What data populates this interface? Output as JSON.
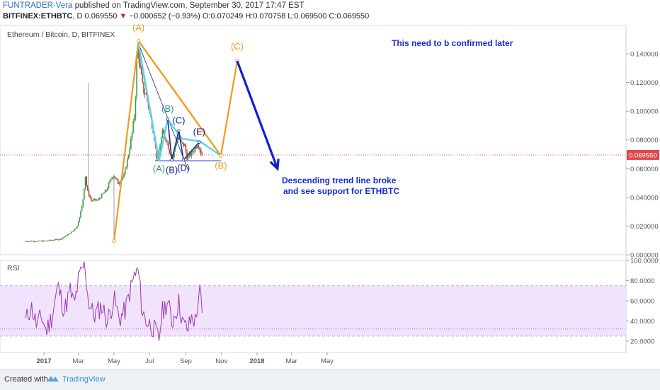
{
  "header": {
    "author": "FUNTRADER-Vera",
    "published": "published on TradingView.com, September 30, 2017 17:47 EST",
    "symbol": "BITFINEX:ETHBTC",
    "interval": "D",
    "last": "0.069550",
    "change": "−0.000652 (−0.93%)",
    "ohlc": "O:0.070249 H:0.070758 L:0.069500 C:0.069550"
  },
  "colors": {
    "orange": "#f29b1d",
    "cyan": "#55d6f0",
    "navy": "#1a2a8c",
    "blue": "#0f1fd6",
    "last_price": "#e0474c",
    "rsi_line": "#9c3ab2",
    "rsi_band": "#f1e3fb",
    "up_candle": "#3c9a4a",
    "down_candle": "#b24432",
    "teal": "#2f9a8a"
  },
  "footer": {
    "created": "Created with",
    "brand": "TradingView"
  },
  "chart_data": [
    {
      "type": "candlestick",
      "title": "Ethereum / Bitcoin, D, BITFINEX",
      "x_ticks": [
        "2017",
        "Mar",
        "May",
        "Jul",
        "Sep",
        "Nov",
        "2018",
        "Mar",
        "May"
      ],
      "y_ticks": [
        "0.140000",
        "0.120000",
        "0.100000",
        "0.080000",
        "0.060000",
        "0.040000",
        "0.020000",
        "0.000000"
      ],
      "ylim": [
        0,
        0.15
      ],
      "last_price_label": "0.069550",
      "price_path": [
        {
          "date": "2016-12-01",
          "close": 0.0095
        },
        {
          "date": "2017-01-01",
          "close": 0.0095
        },
        {
          "date": "2017-02-01",
          "close": 0.011
        },
        {
          "date": "2017-02-22",
          "close": 0.0165
        },
        {
          "date": "2017-03-01",
          "close": 0.02
        },
        {
          "date": "2017-03-10",
          "close": 0.035
        },
        {
          "date": "2017-03-15",
          "close": 0.055
        },
        {
          "date": "2017-03-18",
          "close": 0.045
        },
        {
          "date": "2017-03-25",
          "close": 0.038
        },
        {
          "date": "2017-04-05",
          "close": 0.038
        },
        {
          "date": "2017-04-20",
          "close": 0.045
        },
        {
          "date": "2017-05-01",
          "close": 0.056
        },
        {
          "date": "2017-05-10",
          "close": 0.05
        },
        {
          "date": "2017-05-20",
          "close": 0.055
        },
        {
          "date": "2017-05-28",
          "close": 0.07
        },
        {
          "date": "2017-06-03",
          "close": 0.085
        },
        {
          "date": "2017-06-08",
          "close": 0.1
        },
        {
          "date": "2017-06-12",
          "close": 0.147
        },
        {
          "date": "2017-06-16",
          "close": 0.132
        },
        {
          "date": "2017-06-22",
          "close": 0.115
        },
        {
          "date": "2017-06-28",
          "close": 0.11
        },
        {
          "date": "2017-07-05",
          "close": 0.095
        },
        {
          "date": "2017-07-10",
          "close": 0.085
        },
        {
          "date": "2017-07-16",
          "close": 0.065
        },
        {
          "date": "2017-07-20",
          "close": 0.075
        },
        {
          "date": "2017-07-25",
          "close": 0.085
        },
        {
          "date": "2017-08-01",
          "close": 0.08
        },
        {
          "date": "2017-08-06",
          "close": 0.072
        },
        {
          "date": "2017-08-12",
          "close": 0.068
        },
        {
          "date": "2017-08-15",
          "close": 0.075
        },
        {
          "date": "2017-08-20",
          "close": 0.082
        },
        {
          "date": "2017-08-25",
          "close": 0.078
        },
        {
          "date": "2017-09-01",
          "close": 0.076
        },
        {
          "date": "2017-09-05",
          "close": 0.068
        },
        {
          "date": "2017-09-12",
          "close": 0.07
        },
        {
          "date": "2017-09-18",
          "close": 0.074
        },
        {
          "date": "2017-09-24",
          "close": 0.078
        },
        {
          "date": "2017-09-30",
          "close": 0.0696
        }
      ],
      "spikes": [
        {
          "date": "2017-03-18",
          "high": 0.12
        },
        {
          "date": "2017-05-01",
          "low": 0.01
        }
      ],
      "annotations": {
        "text_confirm": "This need to b confirmed later",
        "text_descending_1": "Descending trend line broke",
        "text_descending_2": "and see support for ETHBTC",
        "orange_wave": [
          {
            "date": "2017-05-01",
            "price": 0.0095
          },
          {
            "date": "2017-06-12",
            "price": 0.149,
            "label": "(A)"
          },
          {
            "date": "2017-10-31",
            "price": 0.069,
            "label": "(B)"
          },
          {
            "date": "2017-11-28",
            "price": 0.135,
            "label": "(C)"
          }
        ],
        "blue_arrow": [
          {
            "date": "2017-11-28",
            "price": 0.135
          },
          {
            "date": "2018-02-05",
            "price": 0.06
          }
        ],
        "cyan_wave": [
          {
            "date": "2017-06-12",
            "price": 0.147
          },
          {
            "date": "2017-07-17",
            "price": 0.0655,
            "label": "(A)"
          },
          {
            "date": "2017-08-01",
            "price": 0.0945,
            "label": "(B)"
          },
          {
            "date": "2017-08-25",
            "price": 0.081
          },
          {
            "date": "2017-09-25",
            "price": 0.079
          },
          {
            "date": "2017-10-31",
            "price": 0.069
          }
        ],
        "navy_wave": [
          {
            "date": "2017-08-01",
            "price": 0.0945
          },
          {
            "date": "2017-08-08",
            "price": 0.066,
            "label": "(B)"
          },
          {
            "date": "2017-08-20",
            "price": 0.0865,
            "label": "(C)"
          },
          {
            "date": "2017-08-28",
            "price": 0.066,
            "label": "(D)"
          },
          {
            "date": "2017-09-24",
            "price": 0.0785,
            "label": "(E)"
          }
        ],
        "trend_line_orange": [
          {
            "date": "2017-06-12",
            "price": 0.149
          },
          {
            "date": "2017-10-31",
            "price": 0.069
          }
        ],
        "trend_line_navy": [
          {
            "date": "2017-06-12",
            "price": 0.147
          },
          {
            "date": "2017-09-05",
            "price": 0.059
          }
        ],
        "support_line": [
          {
            "date": "2017-07-10",
            "price": 0.0655
          },
          {
            "date": "2017-10-31",
            "price": 0.0655
          }
        ],
        "wave_labels": [
          {
            "text": "(A)",
            "date": "2017-06-12",
            "price": 0.156,
            "color": "orange"
          },
          {
            "text": "(A)",
            "date": "2017-07-17",
            "price": 0.058,
            "color": "teal"
          },
          {
            "text": "(B)",
            "date": "2017-08-01",
            "price": 0.0995,
            "color": "teal"
          },
          {
            "text": "(B)",
            "date": "2017-08-08",
            "price": 0.057,
            "color": "navy"
          },
          {
            "text": "(C)",
            "date": "2017-08-20",
            "price": 0.0915,
            "color": "navy"
          },
          {
            "text": "(D)",
            "date": "2017-08-28",
            "price": 0.0585,
            "color": "navy"
          },
          {
            "text": "(E)",
            "date": "2017-09-24",
            "price": 0.0835,
            "color": "navy"
          },
          {
            "text": "(B)",
            "date": "2017-10-31",
            "price": 0.06,
            "color": "orange"
          },
          {
            "text": "(C)",
            "date": "2017-11-28",
            "price": 0.143,
            "color": "orange"
          }
        ]
      }
    },
    {
      "type": "line",
      "title": "RSI",
      "y_ticks": [
        "100.0000",
        "80.0000",
        "60.0000",
        "40.0000",
        "20.0000"
      ],
      "ylim": [
        10,
        100
      ],
      "band": [
        25,
        75
      ],
      "last_value_line": 32,
      "values": [
        {
          "date": "2016-12-01",
          "value": 40
        },
        {
          "date": "2016-12-10",
          "value": 55
        },
        {
          "date": "2016-12-20",
          "value": 35
        },
        {
          "date": "2016-12-28",
          "value": 45
        },
        {
          "date": "2017-01-05",
          "value": 30
        },
        {
          "date": "2017-01-15",
          "value": 45
        },
        {
          "date": "2017-01-25",
          "value": 75
        },
        {
          "date": "2017-02-05",
          "value": 50
        },
        {
          "date": "2017-02-15",
          "value": 70
        },
        {
          "date": "2017-02-22",
          "value": 55
        },
        {
          "date": "2017-03-01",
          "value": 80
        },
        {
          "date": "2017-03-12",
          "value": 98
        },
        {
          "date": "2017-03-18",
          "value": 60
        },
        {
          "date": "2017-03-28",
          "value": 45
        },
        {
          "date": "2017-04-10",
          "value": 55
        },
        {
          "date": "2017-04-20",
          "value": 40
        },
        {
          "date": "2017-05-01",
          "value": 62
        },
        {
          "date": "2017-05-10",
          "value": 42
        },
        {
          "date": "2017-05-20",
          "value": 50
        },
        {
          "date": "2017-05-28",
          "value": 68
        },
        {
          "date": "2017-06-05",
          "value": 85
        },
        {
          "date": "2017-06-12",
          "value": 90
        },
        {
          "date": "2017-06-18",
          "value": 50
        },
        {
          "date": "2017-06-25",
          "value": 40
        },
        {
          "date": "2017-07-05",
          "value": 35
        },
        {
          "date": "2017-07-12",
          "value": 28
        },
        {
          "date": "2017-07-17",
          "value": 22
        },
        {
          "date": "2017-07-22",
          "value": 48
        },
        {
          "date": "2017-08-01",
          "value": 60
        },
        {
          "date": "2017-08-08",
          "value": 38
        },
        {
          "date": "2017-08-15",
          "value": 50
        },
        {
          "date": "2017-08-20",
          "value": 58
        },
        {
          "date": "2017-08-28",
          "value": 36
        },
        {
          "date": "2017-09-05",
          "value": 32
        },
        {
          "date": "2017-09-12",
          "value": 45
        },
        {
          "date": "2017-09-18",
          "value": 38
        },
        {
          "date": "2017-09-24",
          "value": 72
        },
        {
          "date": "2017-09-28",
          "value": 55
        },
        {
          "date": "2017-09-30",
          "value": 32
        }
      ]
    }
  ]
}
